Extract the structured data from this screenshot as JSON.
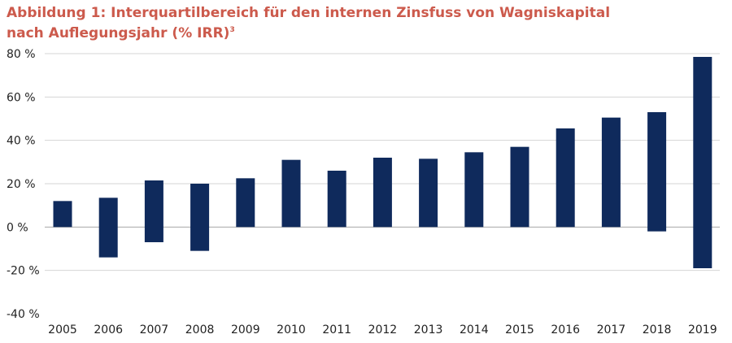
{
  "title": {
    "line1": "Abbildung 1: Interquartilbereich für den internen Zinsfuss von Wagniskapital",
    "line2": "nach Auflegungsjahr (% IRR)",
    "footnote": "3"
  },
  "colors": {
    "bar": "#0f2a5c",
    "title": "#cc5a4c",
    "grid": "#d4d4d4"
  },
  "chart_data": {
    "type": "bar",
    "subtype": "floating-range",
    "categories": [
      "2005",
      "2006",
      "2007",
      "2008",
      "2009",
      "2010",
      "2011",
      "2012",
      "2013",
      "2014",
      "2015",
      "2016",
      "2017",
      "2018",
      "2019"
    ],
    "series": [
      {
        "low": [
          0,
          -14,
          -7,
          -11,
          0,
          0,
          0,
          0,
          0,
          0,
          0,
          0,
          0,
          -2,
          -19
        ],
        "high": [
          12,
          13.5,
          21.5,
          20,
          22.5,
          31,
          26,
          32,
          31.5,
          34.5,
          37,
          45.5,
          50.5,
          53,
          78.5
        ]
      }
    ],
    "yticks": [
      "80 %",
      "60 %",
      "40 %",
      "20 %",
      "0 %",
      "-20 %",
      "-40 %"
    ],
    "ytick_values": [
      80,
      60,
      40,
      20,
      0,
      -20,
      -40
    ],
    "ylim": [
      -40,
      80
    ],
    "grid": true,
    "legend": "none"
  }
}
